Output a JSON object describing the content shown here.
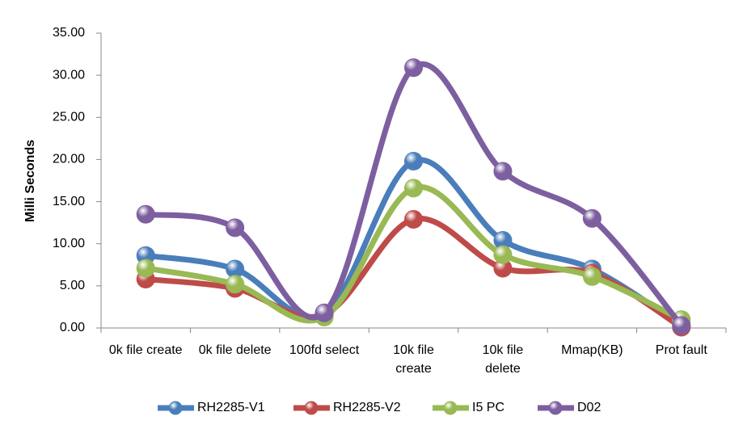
{
  "chart_data": {
    "type": "line",
    "y_label": "Milli Seconds",
    "categories": [
      "0k file create",
      "0k file delete",
      "100fd select",
      "10k file create",
      "10k file delete",
      "Mmap(KB)",
      "Prot fault"
    ],
    "series": [
      {
        "name": "RH2285-V1",
        "color": "#4a7ebb",
        "values": [
          8.6,
          7.0,
          1.7,
          19.8,
          10.4,
          7.0,
          0.3
        ]
      },
      {
        "name": "RH2285-V2",
        "color": "#be4b48",
        "values": [
          5.8,
          4.7,
          1.6,
          12.9,
          7.1,
          6.5,
          0.1
        ]
      },
      {
        "name": "I5 PC",
        "color": "#98b954",
        "values": [
          7.1,
          5.2,
          1.3,
          16.6,
          8.7,
          6.1,
          1.0
        ]
      },
      {
        "name": "D02",
        "color": "#7d5fa0",
        "values": [
          13.5,
          11.9,
          1.8,
          30.9,
          18.6,
          13.0,
          0.3
        ]
      }
    ],
    "ylim": [
      0,
      35
    ],
    "yticks": [
      {
        "value": 0,
        "label": "0.00"
      },
      {
        "value": 5,
        "label": "5.00"
      },
      {
        "value": 10,
        "label": "10.00"
      },
      {
        "value": 15,
        "label": "15.00"
      },
      {
        "value": 20,
        "label": "20.00"
      },
      {
        "value": 25,
        "label": "25.00"
      },
      {
        "value": 30,
        "label": "30.00"
      },
      {
        "value": 35,
        "label": "35.00"
      }
    ],
    "legend": "bottom",
    "smooth": true
  }
}
